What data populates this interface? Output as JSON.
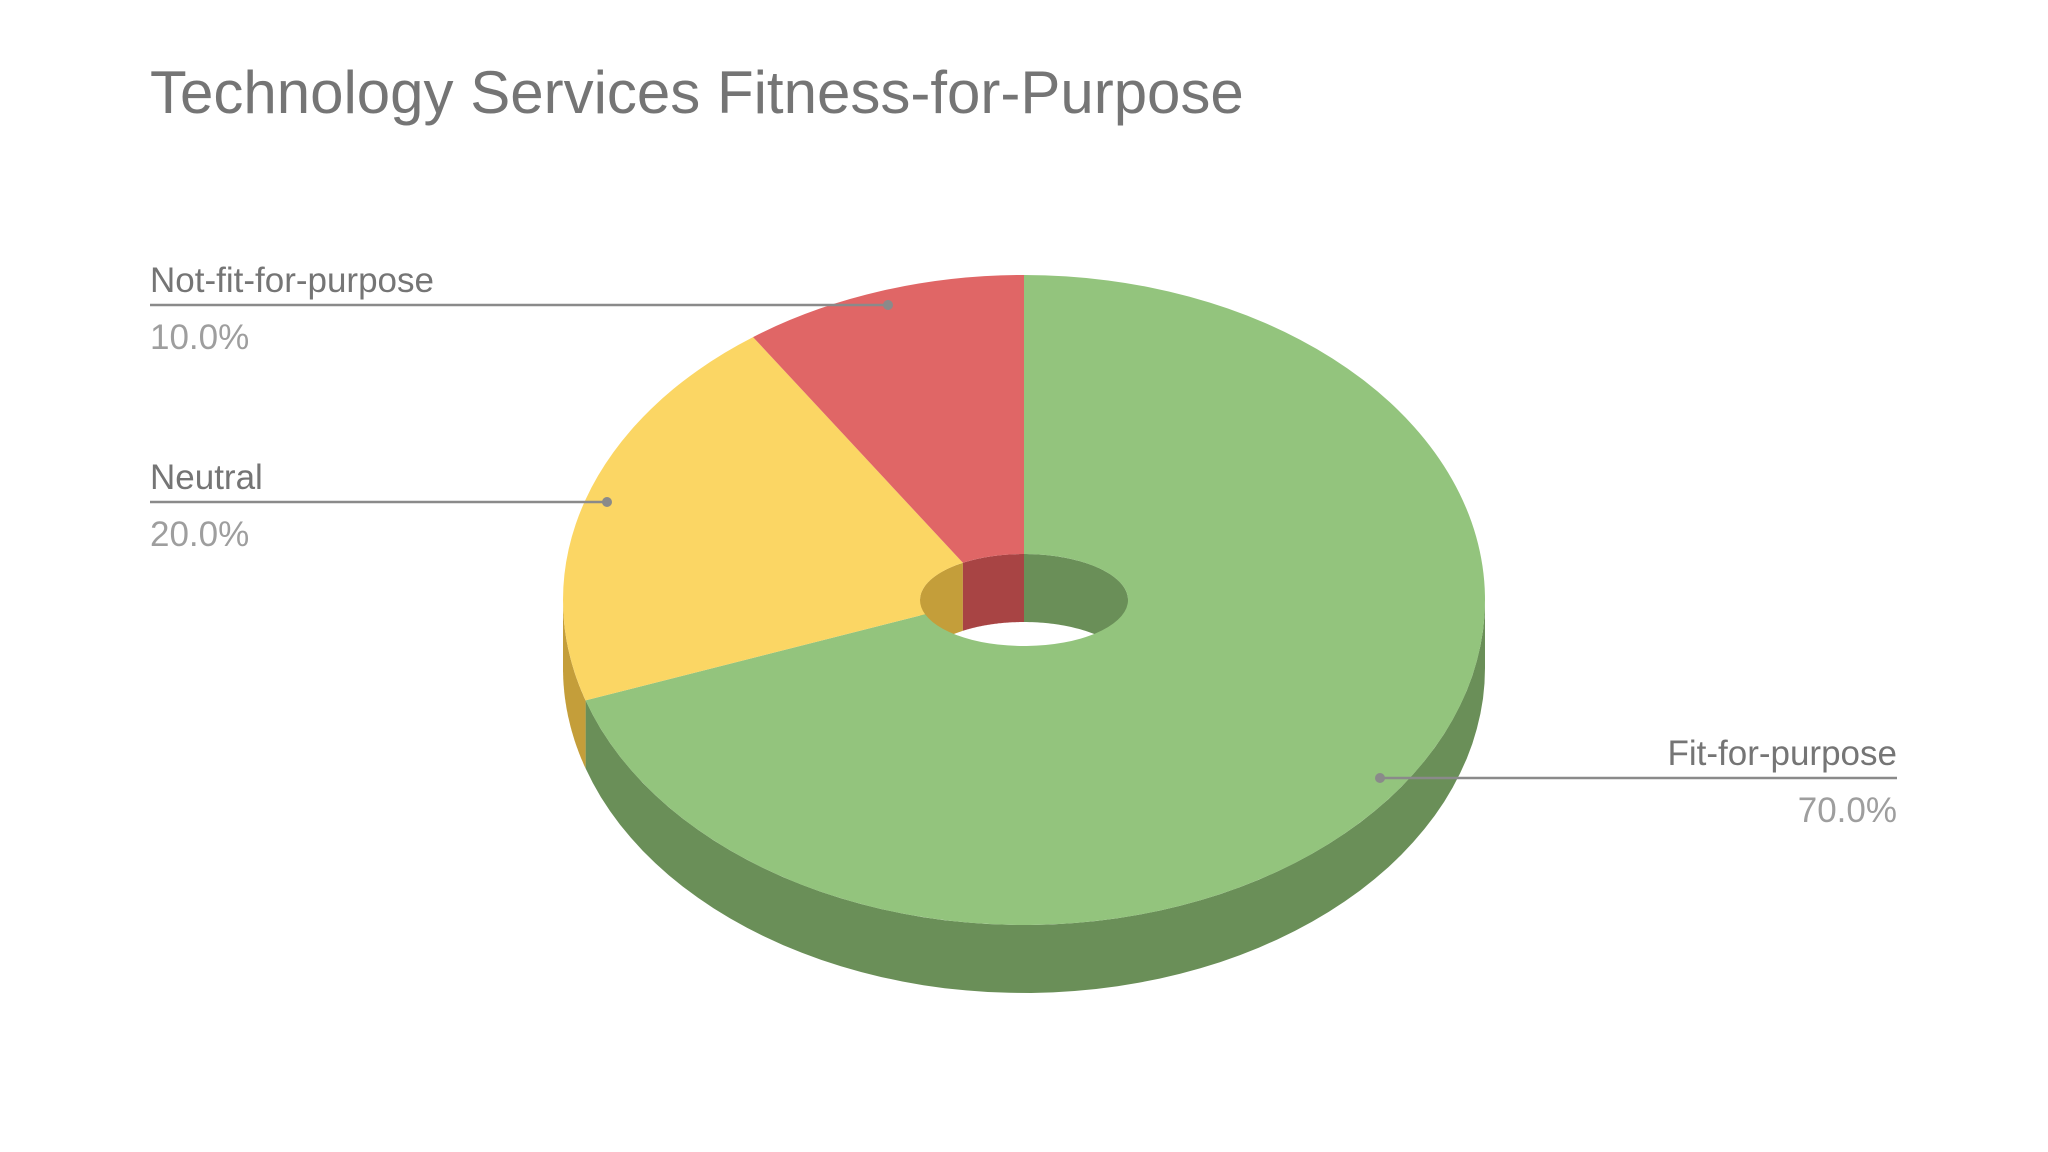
{
  "chart_data": {
    "type": "pie",
    "title": "Technology Services Fitness-for-Purpose",
    "style": "3d-donut",
    "legend": "none",
    "slices": [
      {
        "label": "Fit-for-purpose",
        "value": 70.0,
        "display": "70.0%",
        "color": "#93c47d",
        "side_color": "#6a8f58"
      },
      {
        "label": "Neutral",
        "value": 20.0,
        "display": "20.0%",
        "color": "#fbd664",
        "side_color": "#c49e3a"
      },
      {
        "label": "Not-fit-for-purpose",
        "value": 10.0,
        "display": "10.0%",
        "color": "#e06666",
        "side_color": "#a84444"
      }
    ]
  }
}
